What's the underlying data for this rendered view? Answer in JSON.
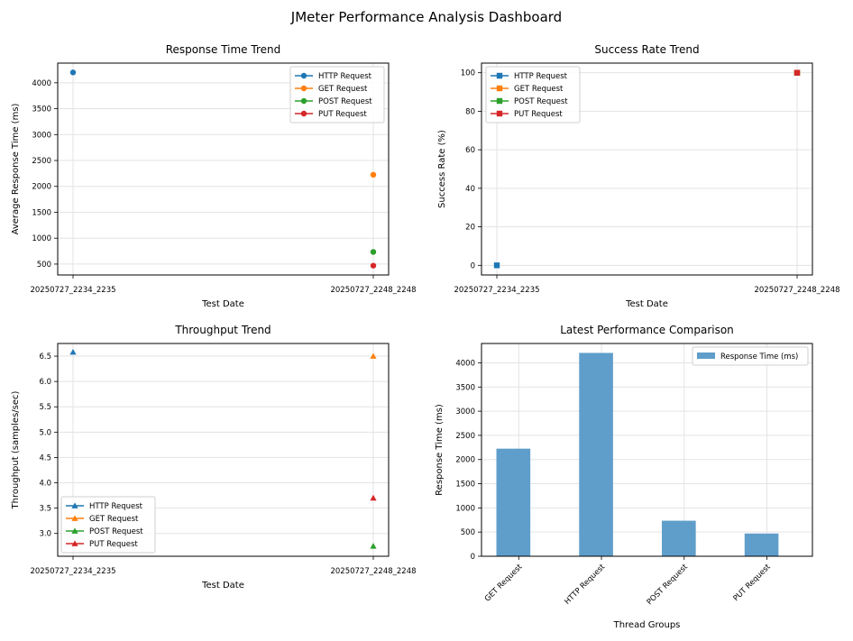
{
  "title": "JMeter Performance Analysis Dashboard",
  "colors": {
    "HTTP Request": "#1f77b4",
    "GET Request": "#ff7f0e",
    "POST Request": "#2ca02c",
    "PUT Request": "#d62728",
    "bar": "#5f9ecb",
    "grid": "#e3e3e3"
  },
  "chart_data": [
    {
      "id": "rt",
      "type": "line",
      "title": "Response Time Trend",
      "xlabel": "Test Date",
      "ylabel": "Average Response Time (ms)",
      "categories": [
        "20250727_2234_2235",
        "20250727_2248_2248"
      ],
      "ylim": [
        290,
        4380
      ],
      "yticks": [
        500,
        1000,
        1500,
        2000,
        2500,
        3000,
        3500,
        4000
      ],
      "marker": "circle",
      "legend_loc": "upper right",
      "grid": true,
      "series": [
        {
          "name": "HTTP Request",
          "values": [
            4200,
            null
          ]
        },
        {
          "name": "GET Request",
          "values": [
            null,
            2225
          ]
        },
        {
          "name": "POST Request",
          "values": [
            null,
            735
          ]
        },
        {
          "name": "PUT Request",
          "values": [
            null,
            470
          ]
        }
      ]
    },
    {
      "id": "sr",
      "type": "line",
      "title": "Success Rate Trend",
      "xlabel": "Test Date",
      "ylabel": "Success Rate (%)",
      "categories": [
        "20250727_2234_2235",
        "20250727_2248_2248"
      ],
      "ylim": [
        -5,
        105
      ],
      "yticks": [
        0,
        20,
        40,
        60,
        80,
        100
      ],
      "marker": "square",
      "legend_loc": "upper left",
      "grid": true,
      "series": [
        {
          "name": "HTTP Request",
          "values": [
            0,
            null
          ]
        },
        {
          "name": "GET Request",
          "values": [
            null,
            100
          ]
        },
        {
          "name": "POST Request",
          "values": [
            null,
            100
          ]
        },
        {
          "name": "PUT Request",
          "values": [
            null,
            100
          ]
        }
      ]
    },
    {
      "id": "tp",
      "type": "line",
      "title": "Throughput Trend",
      "xlabel": "Test Date",
      "ylabel": "Throughput (samples/sec)",
      "categories": [
        "20250727_2234_2235",
        "20250727_2248_2248"
      ],
      "ylim": [
        2.55,
        6.75
      ],
      "yticks": [
        3.0,
        3.5,
        4.0,
        4.5,
        5.0,
        5.5,
        6.0,
        6.5
      ],
      "ytick_decimals": 1,
      "marker": "triangle",
      "legend_loc": "lower left",
      "grid": true,
      "series": [
        {
          "name": "HTTP Request",
          "values": [
            6.58,
            null
          ]
        },
        {
          "name": "GET Request",
          "values": [
            null,
            6.5
          ]
        },
        {
          "name": "POST Request",
          "values": [
            null,
            2.75
          ]
        },
        {
          "name": "PUT Request",
          "values": [
            null,
            3.7
          ]
        }
      ]
    },
    {
      "id": "cmp",
      "type": "bar",
      "title": "Latest Performance Comparison",
      "xlabel": "Thread Groups",
      "ylabel": "Response Time (ms)",
      "categories": [
        "GET Request",
        "HTTP Request",
        "POST Request",
        "PUT Request"
      ],
      "ylim": [
        0,
        4400
      ],
      "yticks": [
        0,
        500,
        1000,
        1500,
        2000,
        2500,
        3000,
        3500,
        4000
      ],
      "legend_loc": "upper right",
      "grid": true,
      "series": [
        {
          "name": "Response Time (ms)",
          "values": [
            2225,
            4205,
            735,
            470
          ]
        }
      ]
    }
  ]
}
